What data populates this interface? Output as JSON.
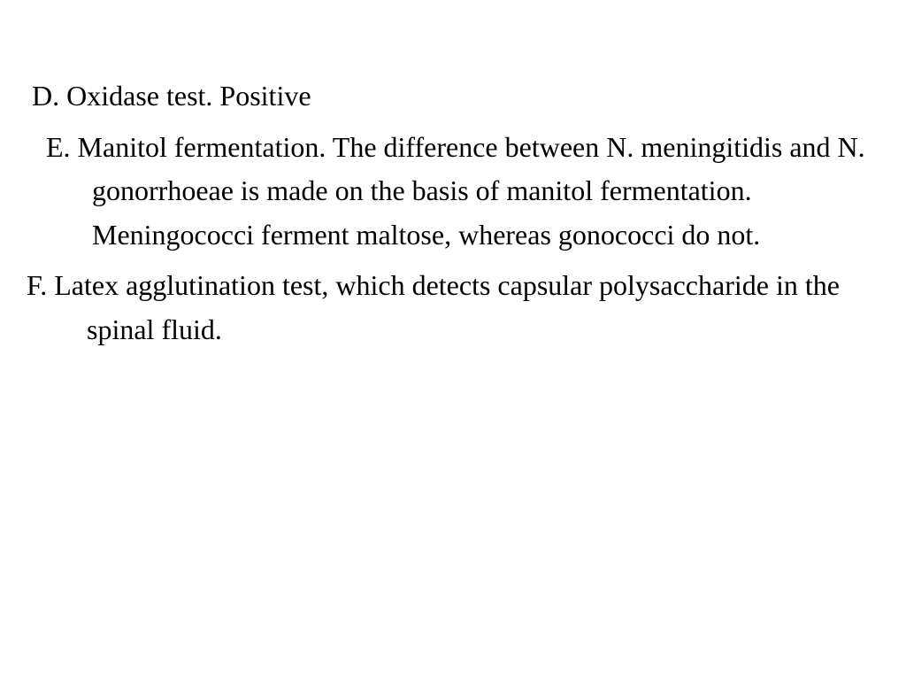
{
  "items": [
    {
      "letter": "D.",
      "text": "Oxidase test. Positive"
    },
    {
      "letter": "E.",
      "text": " Manitol fermentation. The difference between N. meningitidis and N. gonorrhoeae is made on the basis of manitol fermentation. Meningococci ferment maltose, whereas gonococci do not."
    },
    {
      "letter": "F.",
      "text": "Latex agglutination test, which detects capsular polysaccharide in the spinal fluid."
    }
  ],
  "style": {
    "background_color": "#ffffff",
    "text_color": "#000000",
    "font_family": "Times New Roman",
    "font_size_pt": 24,
    "line_height": 1.55
  }
}
